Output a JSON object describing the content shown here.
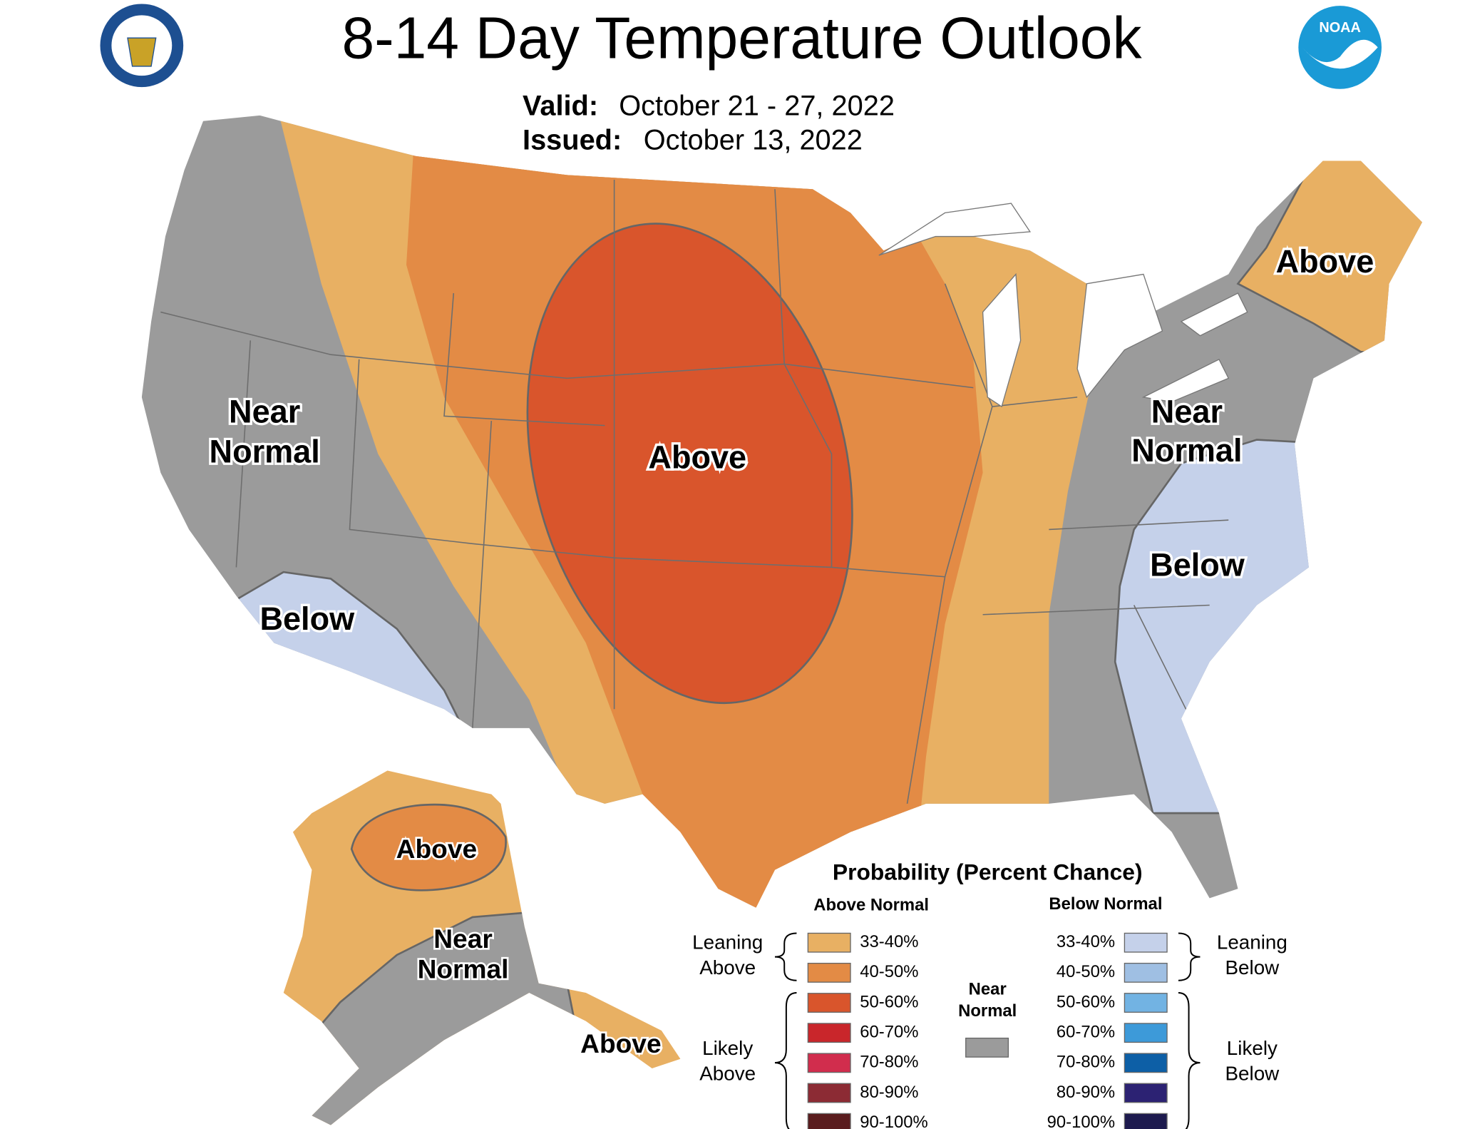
{
  "header": {
    "title": "8-14 Day Temperature Outlook",
    "valid_label": "Valid:",
    "valid": "October 21 - 27, 2022",
    "issued_label": "Issued:",
    "issued": "October 13, 2022",
    "logo_text": "NOAA"
  },
  "map_labels": [
    {
      "lines": [
        "Near",
        "Normal"
      ]
    },
    {
      "lines": [
        "Above"
      ]
    },
    {
      "lines": [
        "Below"
      ]
    },
    {
      "lines": [
        "Near",
        "Normal"
      ]
    },
    {
      "lines": [
        "Below"
      ]
    },
    {
      "lines": [
        "Above"
      ]
    },
    {
      "lines": [
        "Above"
      ]
    },
    {
      "lines": [
        "Near",
        "Normal"
      ]
    },
    {
      "lines": [
        "Above"
      ]
    }
  ],
  "legend": {
    "title": "Probability (Percent Chance)",
    "above_heading": "Above Normal",
    "below_heading": "Below Normal",
    "above": [
      {
        "label": "33-40%",
        "color": "#e8b063"
      },
      {
        "label": "40-50%",
        "color": "#e38b45"
      },
      {
        "label": "50-60%",
        "color": "#d9552c"
      },
      {
        "label": "60-70%",
        "color": "#c9262b"
      },
      {
        "label": "70-80%",
        "color": "#d12d4d"
      },
      {
        "label": "80-90%",
        "color": "#8c2b34"
      },
      {
        "label": "90-100%",
        "color": "#5a1c1e"
      }
    ],
    "below": [
      {
        "label": "33-40%",
        "color": "#c5d1ea"
      },
      {
        "label": "40-50%",
        "color": "#9fbfe3"
      },
      {
        "label": "50-60%",
        "color": "#72b3e3"
      },
      {
        "label": "60-70%",
        "color": "#3d9ad9"
      },
      {
        "label": "70-80%",
        "color": "#0d5fa6"
      },
      {
        "label": "80-90%",
        "color": "#2c2273"
      },
      {
        "label": "90-100%",
        "color": "#1d1a4e"
      }
    ],
    "near": {
      "lines": [
        "Near",
        "Normal"
      ],
      "color": "#9b9b9b"
    },
    "leaning_above": [
      "Leaning",
      "Above"
    ],
    "likely_above": [
      "Likely",
      "Above"
    ],
    "leaning_below": [
      "Leaning",
      "Below"
    ],
    "likely_below": [
      "Likely",
      "Below"
    ]
  }
}
